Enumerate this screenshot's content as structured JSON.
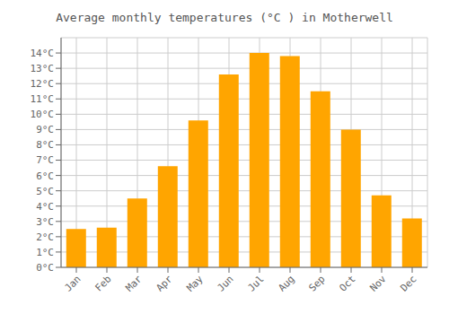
{
  "chart_data": {
    "type": "bar",
    "title": "Average monthly temperatures (°C ) in Motherwell",
    "categories": [
      "Jan",
      "Feb",
      "Mar",
      "Apr",
      "May",
      "Jun",
      "Jul",
      "Aug",
      "Sep",
      "Oct",
      "Nov",
      "Dec"
    ],
    "values": [
      2.5,
      2.6,
      4.5,
      6.6,
      9.6,
      12.6,
      14.0,
      13.8,
      11.5,
      9.0,
      4.7,
      3.2
    ],
    "color": "#FFA500",
    "ylim": [
      0,
      15
    ],
    "yticks": [
      {
        "value": 0,
        "label": "0°C"
      },
      {
        "value": 1,
        "label": "1°C"
      },
      {
        "value": 2,
        "label": "2°C"
      },
      {
        "value": 3,
        "label": "3°C"
      },
      {
        "value": 4,
        "label": "4°C"
      },
      {
        "value": 5,
        "label": "5°C"
      },
      {
        "value": 6,
        "label": "6°C"
      },
      {
        "value": 7,
        "label": "7°C"
      },
      {
        "value": 8,
        "label": "8°C"
      },
      {
        "value": 9,
        "label": "9°C"
      },
      {
        "value": 10,
        "label": "10°C"
      },
      {
        "value": 11,
        "label": "11°C"
      },
      {
        "value": 12,
        "label": "12°C"
      },
      {
        "value": 13,
        "label": "13°C"
      },
      {
        "value": 14,
        "label": "14°C"
      }
    ],
    "grid": true
  }
}
